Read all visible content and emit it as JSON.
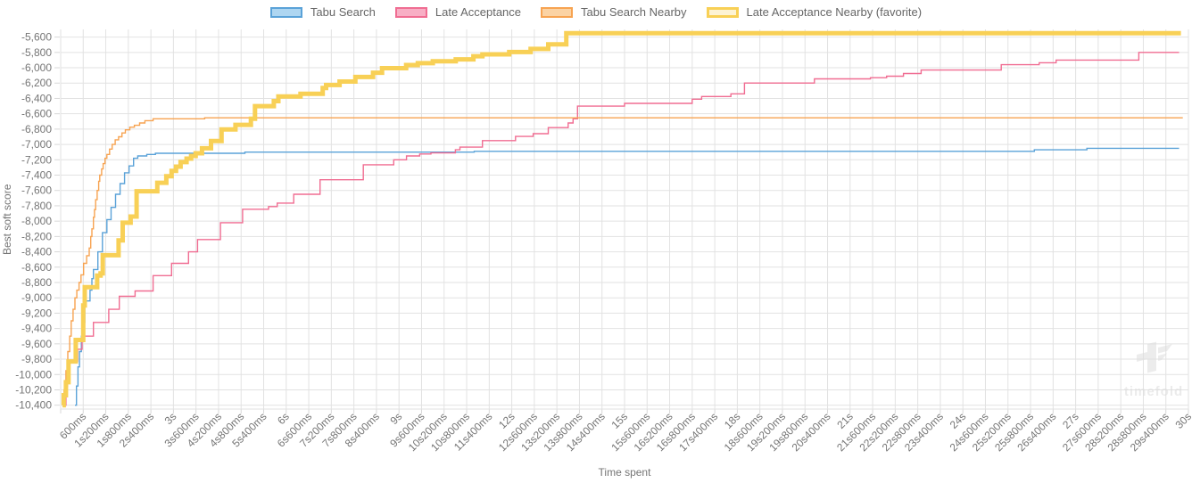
{
  "axes": {
    "x_title": "Time spent",
    "y_title": "Best soft score"
  },
  "watermark": {
    "text": "timefold"
  },
  "chart_data": {
    "type": "line",
    "title": "",
    "xlabel": "Time spent",
    "ylabel": "Best soft score",
    "step_mode": "after",
    "grid": true,
    "legend_position": "top",
    "xlim_seconds": [
      0,
      30
    ],
    "ylim": [
      -10450,
      -5500
    ],
    "x_tick_step_seconds": 0.6,
    "y_tick_step": 200,
    "x_tick_labels": [
      "600ms",
      "1s200ms",
      "1s800ms",
      "2s400ms",
      "3s",
      "3s600ms",
      "4s200ms",
      "4s800ms",
      "5s400ms",
      "6s",
      "6s600ms",
      "7s200ms",
      "7s800ms",
      "8s400ms",
      "9s",
      "9s600ms",
      "10s200ms",
      "10s800ms",
      "11s400ms",
      "12s",
      "12s600ms",
      "13s200ms",
      "13s800ms",
      "14s400ms",
      "15s",
      "15s600ms",
      "16s200ms",
      "16s800ms",
      "17s400ms",
      "18s",
      "18s600ms",
      "19s200ms",
      "19s800ms",
      "20s400ms",
      "21s",
      "21s600ms",
      "22s200ms",
      "22s800ms",
      "23s400ms",
      "24s",
      "24s600ms",
      "25s200ms",
      "25s800ms",
      "26s400ms",
      "27s",
      "27s600ms",
      "28s200ms",
      "28s800ms",
      "29s400ms",
      "30s"
    ],
    "y_tick_labels": [
      "-5,600",
      "-5,800",
      "-6,000",
      "-6,200",
      "-6,400",
      "-6,600",
      "-6,800",
      "-7,000",
      "-7,200",
      "-7,400",
      "-7,600",
      "-7,800",
      "-8,000",
      "-8,200",
      "-8,400",
      "-8,600",
      "-8,800",
      "-9,000",
      "-9,200",
      "-9,400",
      "-9,600",
      "-9,800",
      "-10,000",
      "-10,200",
      "-10,400"
    ],
    "y_tick_values": [
      -5600,
      -5800,
      -6000,
      -6200,
      -6400,
      -6600,
      -6800,
      -7000,
      -7200,
      -7400,
      -7600,
      -7800,
      -8000,
      -8200,
      -8400,
      -8600,
      -8800,
      -9000,
      -9200,
      -9400,
      -9600,
      -9800,
      -10000,
      -10200,
      -10400
    ],
    "grid_color": "#e2e2e2",
    "tick_color": "#d8d8d8",
    "text_color": "#757575",
    "series": [
      {
        "name": "Tabu Search",
        "color": "#5aa2d8",
        "legend_fill": "#aed6f1",
        "width": 1.4,
        "favorite": false,
        "points": [
          [
            0.38,
            -10400
          ],
          [
            0.42,
            -10150
          ],
          [
            0.46,
            -9900
          ],
          [
            0.5,
            -9700
          ],
          [
            0.55,
            -9500
          ],
          [
            0.6,
            -9320
          ],
          [
            0.64,
            -9040
          ],
          [
            0.78,
            -8900
          ],
          [
            0.83,
            -8750
          ],
          [
            0.87,
            -8630
          ],
          [
            0.99,
            -8400
          ],
          [
            1.11,
            -8150
          ],
          [
            1.23,
            -7980
          ],
          [
            1.34,
            -7820
          ],
          [
            1.46,
            -7650
          ],
          [
            1.58,
            -7510
          ],
          [
            1.7,
            -7370
          ],
          [
            1.82,
            -7280
          ],
          [
            1.94,
            -7180
          ],
          [
            2.05,
            -7150
          ],
          [
            2.29,
            -7130
          ],
          [
            2.52,
            -7115
          ],
          [
            4.9,
            -7100
          ],
          [
            11.0,
            -7090
          ],
          [
            25.9,
            -7070
          ],
          [
            27.3,
            -7050
          ]
        ],
        "end_time": 29.75
      },
      {
        "name": "Late Acceptance",
        "color": "#f06d92",
        "legend_fill": "#f8afc5",
        "width": 1.4,
        "favorite": false,
        "points": [
          [
            0.1,
            -10400
          ],
          [
            0.14,
            -10150
          ],
          [
            0.18,
            -10000
          ],
          [
            0.21,
            -9830
          ],
          [
            0.45,
            -9670
          ],
          [
            0.57,
            -9500
          ],
          [
            0.87,
            -9320
          ],
          [
            1.28,
            -9150
          ],
          [
            1.56,
            -8980
          ],
          [
            1.98,
            -8910
          ],
          [
            2.46,
            -8710
          ],
          [
            2.95,
            -8550
          ],
          [
            3.4,
            -8400
          ],
          [
            3.64,
            -8240
          ],
          [
            4.25,
            -8020
          ],
          [
            4.84,
            -7845
          ],
          [
            5.53,
            -7810
          ],
          [
            5.76,
            -7765
          ],
          [
            6.2,
            -7650
          ],
          [
            6.9,
            -7460
          ],
          [
            8.05,
            -7265
          ],
          [
            8.86,
            -7200
          ],
          [
            9.2,
            -7150
          ],
          [
            9.55,
            -7125
          ],
          [
            9.85,
            -7110
          ],
          [
            10.5,
            -7070
          ],
          [
            10.62,
            -7035
          ],
          [
            11.22,
            -6950
          ],
          [
            12.1,
            -6895
          ],
          [
            12.57,
            -6860
          ],
          [
            12.97,
            -6780
          ],
          [
            13.5,
            -6720
          ],
          [
            13.63,
            -6665
          ],
          [
            13.75,
            -6500
          ],
          [
            15.0,
            -6465
          ],
          [
            16.8,
            -6410
          ],
          [
            17.05,
            -6375
          ],
          [
            17.83,
            -6340
          ],
          [
            18.19,
            -6200
          ],
          [
            20.05,
            -6145
          ],
          [
            21.54,
            -6130
          ],
          [
            21.97,
            -6110
          ],
          [
            22.42,
            -6075
          ],
          [
            22.89,
            -6030
          ],
          [
            25.02,
            -5960
          ],
          [
            26.03,
            -5935
          ],
          [
            26.48,
            -5900
          ],
          [
            28.68,
            -5800
          ]
        ],
        "end_time": 29.75
      },
      {
        "name": "Tabu Search Nearby",
        "color": "#f7a351",
        "legend_fill": "#fbd3a4",
        "width": 1.4,
        "favorite": false,
        "points": [
          [
            0.05,
            -10400
          ],
          [
            0.09,
            -10200
          ],
          [
            0.14,
            -9950
          ],
          [
            0.19,
            -9700
          ],
          [
            0.24,
            -9500
          ],
          [
            0.28,
            -9300
          ],
          [
            0.33,
            -9150
          ],
          [
            0.38,
            -9000
          ],
          [
            0.43,
            -8900
          ],
          [
            0.49,
            -8800
          ],
          [
            0.54,
            -8700
          ],
          [
            0.61,
            -8550
          ],
          [
            0.69,
            -8450
          ],
          [
            0.76,
            -8350
          ],
          [
            0.8,
            -8200
          ],
          [
            0.83,
            -8100
          ],
          [
            0.87,
            -7950
          ],
          [
            0.9,
            -7850
          ],
          [
            0.93,
            -7720
          ],
          [
            0.97,
            -7600
          ],
          [
            1.01,
            -7480
          ],
          [
            1.04,
            -7400
          ],
          [
            1.09,
            -7320
          ],
          [
            1.13,
            -7250
          ],
          [
            1.18,
            -7180
          ],
          [
            1.23,
            -7130
          ],
          [
            1.3,
            -7060
          ],
          [
            1.37,
            -7000
          ],
          [
            1.45,
            -6940
          ],
          [
            1.54,
            -6900
          ],
          [
            1.63,
            -6850
          ],
          [
            1.72,
            -6810
          ],
          [
            1.84,
            -6775
          ],
          [
            1.96,
            -6750
          ],
          [
            2.1,
            -6720
          ],
          [
            2.24,
            -6690
          ],
          [
            2.46,
            -6665
          ],
          [
            3.83,
            -6653
          ]
        ],
        "end_time": 29.85
      },
      {
        "name": "Late Acceptance Nearby (favorite)",
        "color": "#f8d056",
        "legend_fill": "#fdf3d4",
        "width": 5,
        "favorite": true,
        "points": [
          [
            0.05,
            -10400
          ],
          [
            0.08,
            -10270
          ],
          [
            0.14,
            -10100
          ],
          [
            0.21,
            -9830
          ],
          [
            0.4,
            -9550
          ],
          [
            0.6,
            -9100
          ],
          [
            0.64,
            -8860
          ],
          [
            0.97,
            -8710
          ],
          [
            1.06,
            -8680
          ],
          [
            1.12,
            -8445
          ],
          [
            1.54,
            -8250
          ],
          [
            1.65,
            -8020
          ],
          [
            1.86,
            -7940
          ],
          [
            2.02,
            -7610
          ],
          [
            2.57,
            -7500
          ],
          [
            2.81,
            -7415
          ],
          [
            2.95,
            -7345
          ],
          [
            3.07,
            -7290
          ],
          [
            3.19,
            -7230
          ],
          [
            3.35,
            -7185
          ],
          [
            3.47,
            -7150
          ],
          [
            3.59,
            -7115
          ],
          [
            3.76,
            -7050
          ],
          [
            4.0,
            -6955
          ],
          [
            4.28,
            -6805
          ],
          [
            4.65,
            -6745
          ],
          [
            5.06,
            -6665
          ],
          [
            5.17,
            -6500
          ],
          [
            5.67,
            -6435
          ],
          [
            5.79,
            -6375
          ],
          [
            6.38,
            -6340
          ],
          [
            6.97,
            -6265
          ],
          [
            7.06,
            -6225
          ],
          [
            7.42,
            -6180
          ],
          [
            7.84,
            -6120
          ],
          [
            8.31,
            -6065
          ],
          [
            8.55,
            -6005
          ],
          [
            9.19,
            -5965
          ],
          [
            9.5,
            -5940
          ],
          [
            9.9,
            -5915
          ],
          [
            10.51,
            -5890
          ],
          [
            10.98,
            -5850
          ],
          [
            11.22,
            -5825
          ],
          [
            11.93,
            -5795
          ],
          [
            12.5,
            -5755
          ],
          [
            12.97,
            -5695
          ],
          [
            13.45,
            -5550
          ]
        ],
        "end_time": 29.8
      }
    ]
  }
}
